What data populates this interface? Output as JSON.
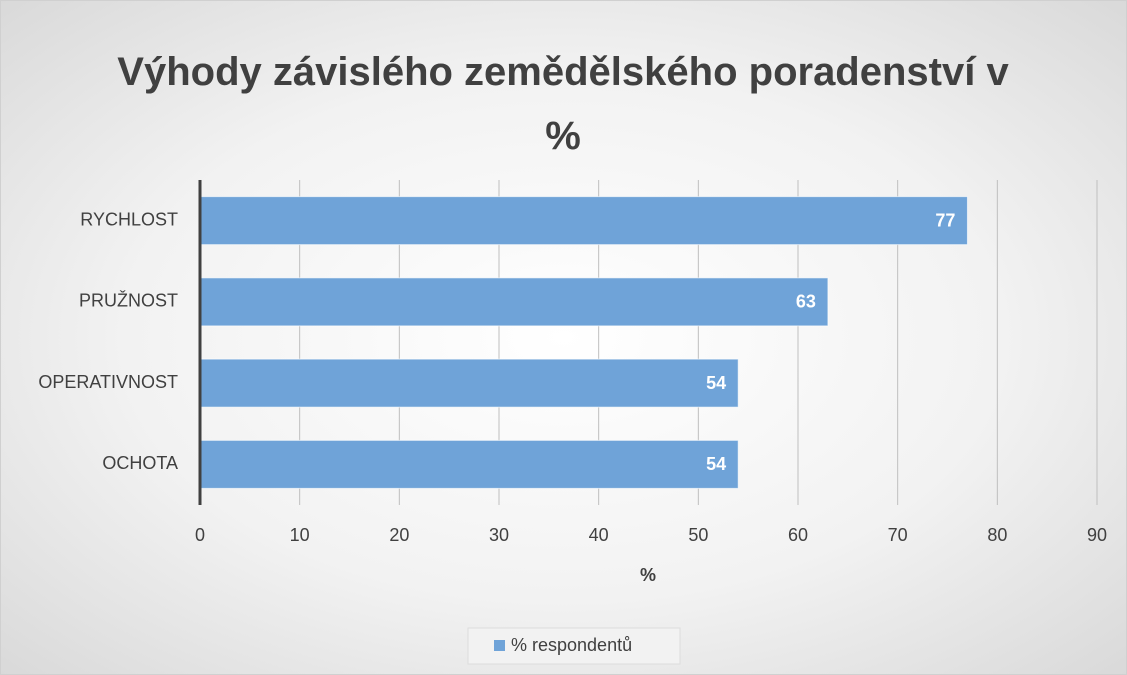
{
  "chart_data": {
    "type": "bar",
    "orientation": "horizontal",
    "title": "Výhody závislého zemědělského poradenství v %",
    "xlabel": "%",
    "categories": [
      "RYCHLOST",
      "PRUŽNOST",
      "OPERATIVNOST",
      "OCHOTA"
    ],
    "series": [
      {
        "name": "% respondentů",
        "color": "#6fa3d8",
        "values": [
          77,
          63,
          54,
          54
        ]
      }
    ],
    "xlim": [
      0,
      90
    ],
    "xticks": [
      0,
      10,
      20,
      30,
      40,
      50,
      60,
      70,
      80,
      90
    ],
    "grid": true,
    "legend": "bottom"
  }
}
